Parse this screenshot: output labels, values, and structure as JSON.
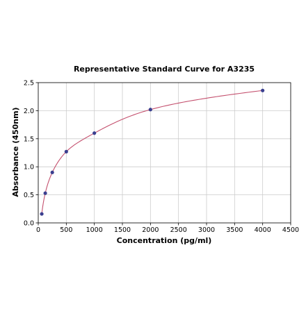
{
  "chart_data": {
    "type": "scatter",
    "title": "Representative Standard Curve for A3235",
    "xlabel": "Concentration (pg/ml)",
    "ylabel": "Absorbance (450nm)",
    "xlim": [
      0,
      4500
    ],
    "ylim": [
      0,
      2.5
    ],
    "x_ticks": [
      0,
      500,
      1000,
      1500,
      2000,
      2500,
      3000,
      3500,
      4000,
      4500
    ],
    "y_ticks": [
      0.0,
      0.5,
      1.0,
      1.5,
      2.0,
      2.5
    ],
    "y_tick_labels": [
      "0.0",
      "0.5",
      "1.0",
      "1.5",
      "2.0",
      "2.5"
    ],
    "grid": true,
    "series": [
      {
        "x": [
          62.5,
          125,
          250,
          500,
          1000,
          2000,
          4000
        ],
        "y": [
          0.16,
          0.53,
          0.9,
          1.27,
          1.6,
          2.02,
          2.36
        ]
      }
    ],
    "fit_curve": true,
    "colors": {
      "points": "#3a3f8f",
      "curve": "#c4506e",
      "grid": "#cccccc",
      "axis": "#000000"
    }
  }
}
